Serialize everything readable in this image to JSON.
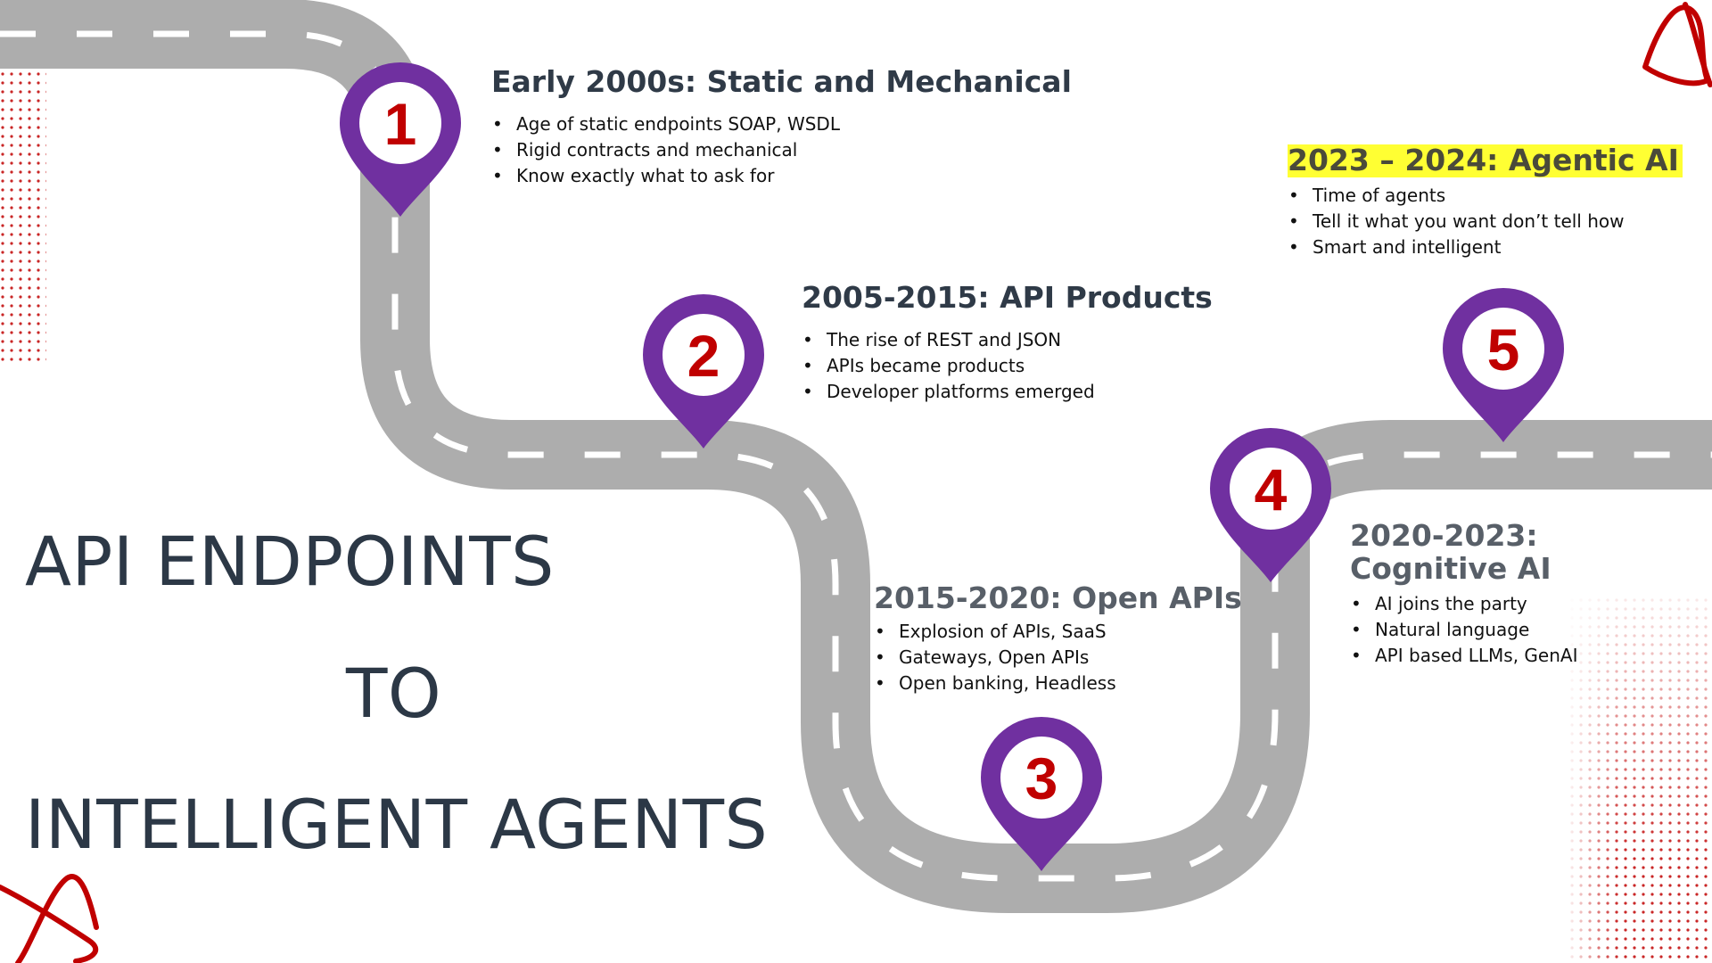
{
  "title": {
    "line1": "API ENDPOINTS",
    "line2": "TO",
    "line3": "INTELLIGENT AGENTS"
  },
  "milestones": [
    {
      "number": "1",
      "heading": "Early 2000s: Static and Mechanical",
      "bullets": [
        "Age of static endpoints SOAP, WSDL",
        "Rigid contracts and mechanical",
        "Know exactly what to ask for"
      ]
    },
    {
      "number": "2",
      "heading": "2005-2015: API Products",
      "bullets": [
        "The rise of REST and JSON",
        "APIs became products",
        "Developer platforms emerged"
      ]
    },
    {
      "number": "3",
      "heading": "2015-2020: Open APIs",
      "bullets": [
        "Explosion of APIs, SaaS",
        "Gateways, Open APIs",
        "Open banking, Headless"
      ]
    },
    {
      "number": "4",
      "heading_line1": "2020-2023:",
      "heading_line2": "Cognitive AI",
      "bullets": [
        "AI joins the party",
        "Natural language",
        "API based LLMs, GenAI"
      ]
    },
    {
      "number": "5",
      "heading": "2023 – 2024: Agentic AI",
      "bullets": [
        "Time of agents",
        "Tell it what you want don’t tell how",
        "Smart and intelligent"
      ]
    }
  ],
  "colors": {
    "road": "#adadad",
    "pin": "#7030a0",
    "pin_number": "#c00000",
    "highlight": "#ffff33",
    "accent_red": "#c00000",
    "title_text": "#2c3846"
  },
  "icons": [
    "map-pin-icon",
    "squiggle-decoration",
    "dot-pattern-decoration"
  ]
}
